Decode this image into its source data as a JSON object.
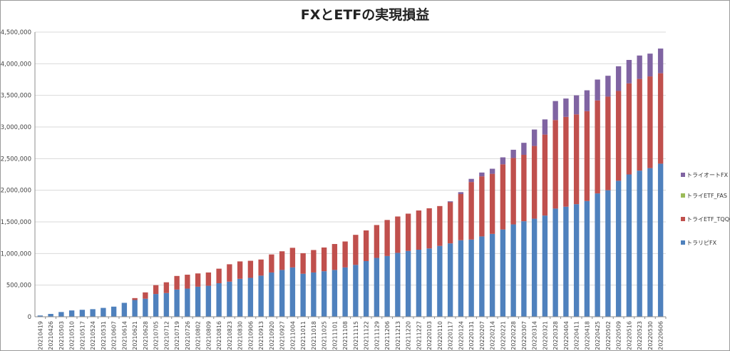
{
  "chart_data": {
    "type": "bar",
    "stacked": true,
    "title": "FXとETFの実現損益",
    "ylim": [
      0,
      4500000
    ],
    "y_ticks": [
      "0",
      "500,000",
      "1,000,000",
      "1,500,000",
      "2,000,000",
      "2,500,000",
      "3,000,000",
      "3,500,000",
      "4,000,000",
      "4,500,000"
    ],
    "grid": true,
    "legend_position": "right",
    "categories": [
      "20210419",
      "20210426",
      "20210503",
      "20210510",
      "20210517",
      "20210524",
      "20210531",
      "20210607",
      "20210614",
      "20210621",
      "20210628",
      "20210705",
      "20210712",
      "20210719",
      "20210726",
      "20210802",
      "20210809",
      "20210816",
      "20210823",
      "20210830",
      "20210906",
      "20210913",
      "20210920",
      "20210927",
      "20211004",
      "20211011",
      "20211018",
      "20211025",
      "20211101",
      "20211108",
      "20211115",
      "20211122",
      "20211129",
      "20211206",
      "20211213",
      "20211220",
      "20211227",
      "20220103",
      "20220110",
      "20220117",
      "20220124",
      "20220131",
      "20220207",
      "20220214",
      "20220221",
      "20220228",
      "20220307",
      "20220314",
      "20220321",
      "20220328",
      "20220404",
      "20220411",
      "20220418",
      "20220425",
      "20220502",
      "20220509",
      "20220516",
      "20220523",
      "20220530",
      "20220606"
    ],
    "series": [
      {
        "name": "トラリピFX",
        "color": "#4f81bd",
        "values": [
          20000,
          45000,
          75000,
          100000,
          110000,
          120000,
          140000,
          160000,
          220000,
          265000,
          285000,
          360000,
          375000,
          430000,
          445000,
          475000,
          490000,
          530000,
          555000,
          600000,
          615000,
          650000,
          700000,
          740000,
          780000,
          680000,
          700000,
          720000,
          740000,
          780000,
          820000,
          880000,
          930000,
          960000,
          1010000,
          1040000,
          1060000,
          1080000,
          1120000,
          1160000,
          1210000,
          1220000,
          1270000,
          1310000,
          1380000,
          1460000,
          1510000,
          1550000,
          1600000,
          1710000,
          1740000,
          1780000,
          1830000,
          1950000,
          2000000,
          2150000,
          2250000,
          2310000,
          2350000,
          2420000
        ]
      },
      {
        "name": "トライETF_TQQQ",
        "color": "#c0504d",
        "values": [
          0,
          0,
          0,
          0,
          0,
          0,
          0,
          0,
          0,
          30000,
          100000,
          140000,
          170000,
          215000,
          220000,
          210000,
          210000,
          230000,
          275000,
          275000,
          270000,
          255000,
          285000,
          295000,
          310000,
          325000,
          355000,
          375000,
          410000,
          410000,
          475000,
          485000,
          520000,
          570000,
          575000,
          590000,
          620000,
          635000,
          630000,
          650000,
          730000,
          910000,
          950000,
          950000,
          1030000,
          1050000,
          1050000,
          1150000,
          1280000,
          1400000,
          1420000,
          1420000,
          1420000,
          1470000,
          1480000,
          1420000,
          1440000,
          1450000,
          1450000,
          1430000
        ]
      },
      {
        "name": "トライETF_FAS",
        "color": "#9bbb59",
        "values": [
          0,
          0,
          0,
          0,
          0,
          0,
          0,
          0,
          0,
          0,
          0,
          0,
          0,
          0,
          0,
          0,
          0,
          0,
          0,
          0,
          0,
          0,
          0,
          0,
          0,
          0,
          0,
          0,
          0,
          0,
          0,
          0,
          0,
          0,
          0,
          0,
          0,
          0,
          0,
          0,
          0,
          0,
          0,
          0,
          0,
          0,
          0,
          0,
          0,
          0,
          0,
          0,
          0,
          0,
          0,
          0,
          0,
          0,
          0,
          0
        ]
      },
      {
        "name": "トライオートFX",
        "color": "#8064a2",
        "values": [
          0,
          0,
          0,
          0,
          0,
          0,
          0,
          0,
          0,
          0,
          0,
          0,
          0,
          0,
          0,
          0,
          0,
          0,
          0,
          0,
          0,
          0,
          0,
          0,
          0,
          0,
          0,
          0,
          0,
          0,
          0,
          0,
          0,
          0,
          0,
          0,
          0,
          0,
          0,
          15000,
          30000,
          50000,
          60000,
          80000,
          110000,
          130000,
          190000,
          260000,
          240000,
          300000,
          290000,
          300000,
          330000,
          330000,
          330000,
          390000,
          370000,
          370000,
          360000,
          390000
        ]
      }
    ]
  }
}
